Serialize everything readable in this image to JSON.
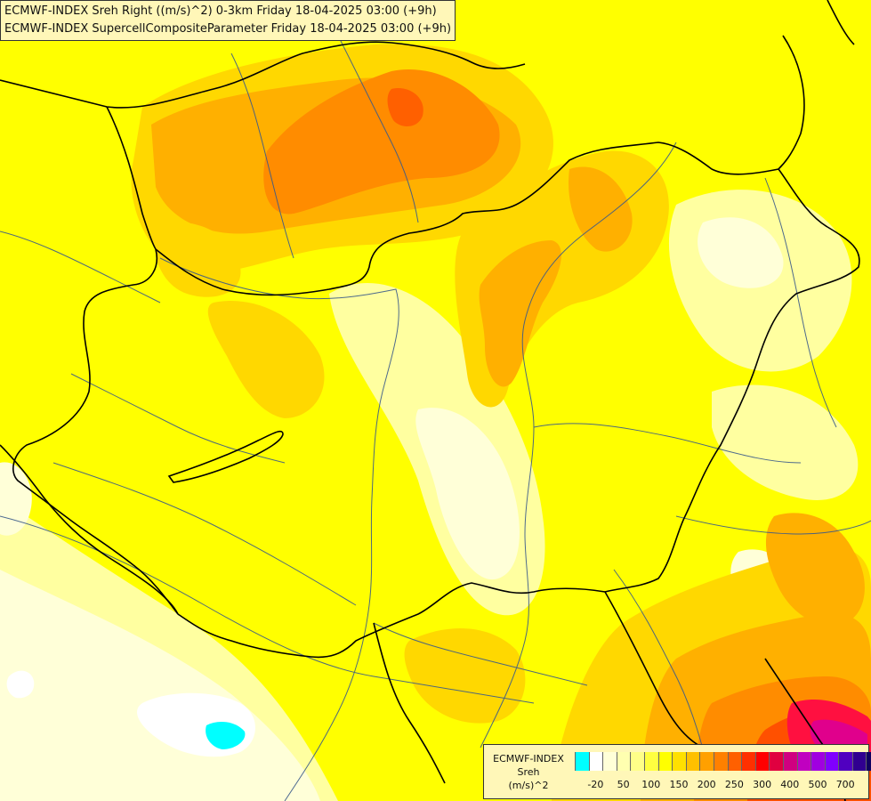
{
  "titles": {
    "line1": "ECMWF-INDEX Sreh Right ((m/s)^2) 0-3km Friday 18-04-2025 03:00 (+9h)",
    "line2": "ECMWF-INDEX SupercellCompositeParameter Friday 18-04-2025 03:00 (+9h)"
  },
  "legend": {
    "title_line1": "ECMWF-INDEX",
    "title_line2": "Sreh",
    "title_line3": "(m/s)^2",
    "colors": [
      "#00ffff",
      "#ffffff",
      "#ffffd8",
      "#ffffb0",
      "#ffff88",
      "#ffff40",
      "#ffff00",
      "#ffe000",
      "#ffc000",
      "#ffa000",
      "#ff8000",
      "#ff6000",
      "#ff3000",
      "#ff0000",
      "#e00040",
      "#d00080",
      "#c000c0",
      "#a000e0",
      "#8000ff",
      "#5000c0",
      "#300090",
      "#100060"
    ],
    "ticks": [
      "-20",
      "50",
      "100",
      "150",
      "200",
      "250",
      "300",
      "400",
      "500",
      "700"
    ]
  },
  "map_colors": {
    "base": "#ffff00",
    "pale": "#ffffa0",
    "very_pale": "#ffffd8",
    "light_orange": "#ffd800",
    "orange": "#ffb000",
    "dark_orange": "#ff8c00",
    "red_orange": "#ff5000",
    "red": "#ff1040",
    "magenta": "#e0008c",
    "cyan": "#00ffff",
    "white": "#ffffff",
    "border": "#000000",
    "river": "#3a5a8a"
  }
}
